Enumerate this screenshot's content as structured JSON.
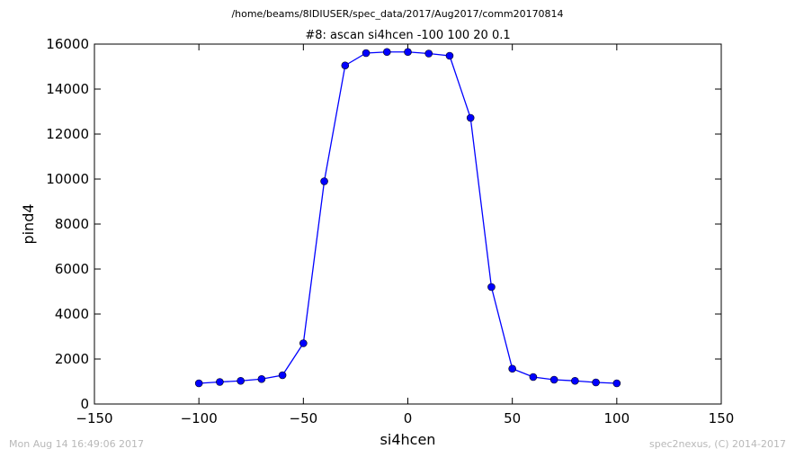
{
  "header": {
    "file_path": "/home/beams/8IDIUSER/spec_data/2017/Aug2017/comm20170814"
  },
  "footer": {
    "timestamp": "Mon Aug 14 16:49:06 2017",
    "credit": "spec2nexus, (C) 2014-2017"
  },
  "chart_data": {
    "type": "line",
    "title": "#8: ascan  si4hcen -100 100  20 0.1",
    "xlabel": "si4hcen",
    "ylabel": "pind4",
    "xlim": [
      -150,
      150
    ],
    "ylim": [
      0,
      16000
    ],
    "xticks": [
      -150,
      -100,
      -50,
      0,
      50,
      100,
      150
    ],
    "xtick_labels": [
      "−150",
      "−100",
      "−50",
      "0",
      "50",
      "100",
      "150"
    ],
    "yticks": [
      0,
      2000,
      4000,
      6000,
      8000,
      10000,
      12000,
      14000,
      16000
    ],
    "ytick_labels": [
      "0",
      "2000",
      "4000",
      "6000",
      "8000",
      "10000",
      "12000",
      "14000",
      "16000"
    ],
    "grid": false,
    "line_color": "#0000ff",
    "marker_color": "#0000ff",
    "series": [
      {
        "x": [
          -100,
          -90,
          -80,
          -70,
          -60,
          -50,
          -40,
          -30,
          -20,
          -10,
          0,
          10,
          20,
          30,
          40,
          50,
          60,
          70,
          80,
          90,
          100
        ],
        "y": [
          920,
          980,
          1030,
          1110,
          1280,
          2700,
          9900,
          15050,
          15600,
          15650,
          15650,
          15580,
          15480,
          12720,
          5200,
          1570,
          1200,
          1080,
          1030,
          960,
          920
        ]
      }
    ]
  }
}
